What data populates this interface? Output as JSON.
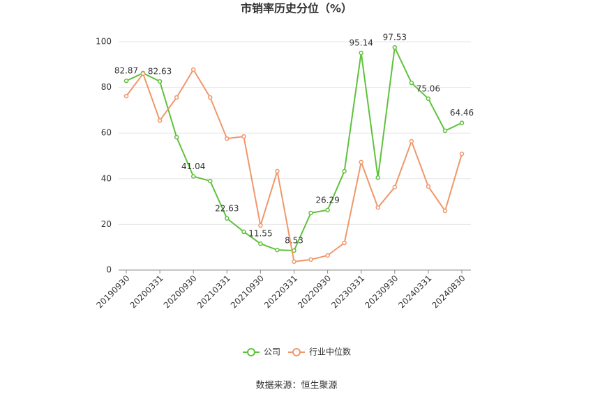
{
  "chart_data": {
    "type": "line",
    "title": "市销率历史分位（%）",
    "categories": [
      "20190930",
      null,
      "20200331",
      null,
      "20200930",
      null,
      "20210331",
      null,
      "20210930",
      null,
      "20220331",
      null,
      "20220930",
      null,
      "20230331",
      null,
      "20230930",
      null,
      "20240331",
      null,
      "20240830"
    ],
    "series": [
      {
        "name": "公司",
        "color": "#5ec23b",
        "values": [
          82.87,
          86.3,
          82.63,
          58.2,
          41.04,
          39,
          22.63,
          16.8,
          11.55,
          8.8,
          8.53,
          25,
          26.29,
          43.3,
          95.14,
          40.5,
          97.53,
          82,
          75.06,
          61,
          64.46
        ]
      },
      {
        "name": "行业中位数",
        "color": "#f0976a",
        "values": [
          76.2,
          86,
          65.5,
          75.6,
          87.8,
          75.6,
          57.6,
          58.5,
          19.5,
          43.3,
          3.7,
          4.6,
          6.4,
          11.9,
          47.3,
          27.4,
          36.3,
          56.4,
          36.6,
          25.9,
          50.9
        ]
      }
    ],
    "ylim": [
      0,
      100
    ],
    "yticks": [
      0,
      20,
      40,
      60,
      80,
      100
    ],
    "grid": true,
    "source": "数据来源：恒生聚源"
  }
}
